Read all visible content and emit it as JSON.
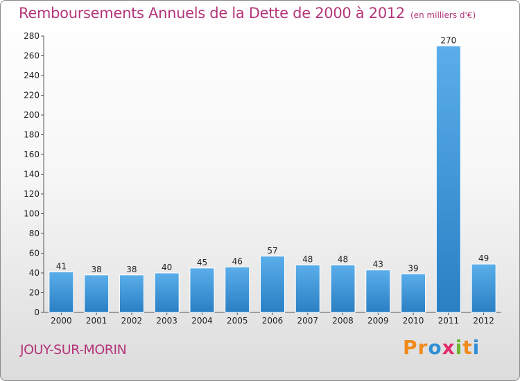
{
  "header": {
    "title": "Remboursements Annuels de la Dette de 2000 à 2012",
    "unit": "(en milliers d'€)"
  },
  "footer": {
    "commune": "JOUY-SUR-MORIN",
    "brand": {
      "letters": [
        "P",
        "r",
        "o",
        "x",
        "i",
        "t",
        "i"
      ],
      "colors": [
        "#f08a1c",
        "#f08a1c",
        "#2f8fd6",
        "#e32a6d",
        "#6bb52f",
        "#f08a1c",
        "#2f8fd6"
      ]
    }
  },
  "chart_data": {
    "type": "bar",
    "title": "Remboursements Annuels de la Dette de 2000 à 2012",
    "subtitle": "(en milliers d'€)",
    "categories": [
      "2000",
      "2001",
      "2002",
      "2003",
      "2004",
      "2005",
      "2006",
      "2007",
      "2008",
      "2009",
      "2010",
      "2011",
      "2012"
    ],
    "values": [
      41,
      38,
      38,
      40,
      45,
      46,
      57,
      48,
      48,
      43,
      39,
      270,
      49
    ],
    "ylim": [
      0,
      280
    ],
    "yticks": [
      0,
      20,
      40,
      60,
      80,
      100,
      120,
      140,
      160,
      180,
      200,
      220,
      240,
      260,
      280
    ],
    "xlabel": "",
    "ylabel": "",
    "grid": false,
    "bar_color_top": "#5aaeea",
    "bar_color_bottom": "#2a7fc4"
  }
}
